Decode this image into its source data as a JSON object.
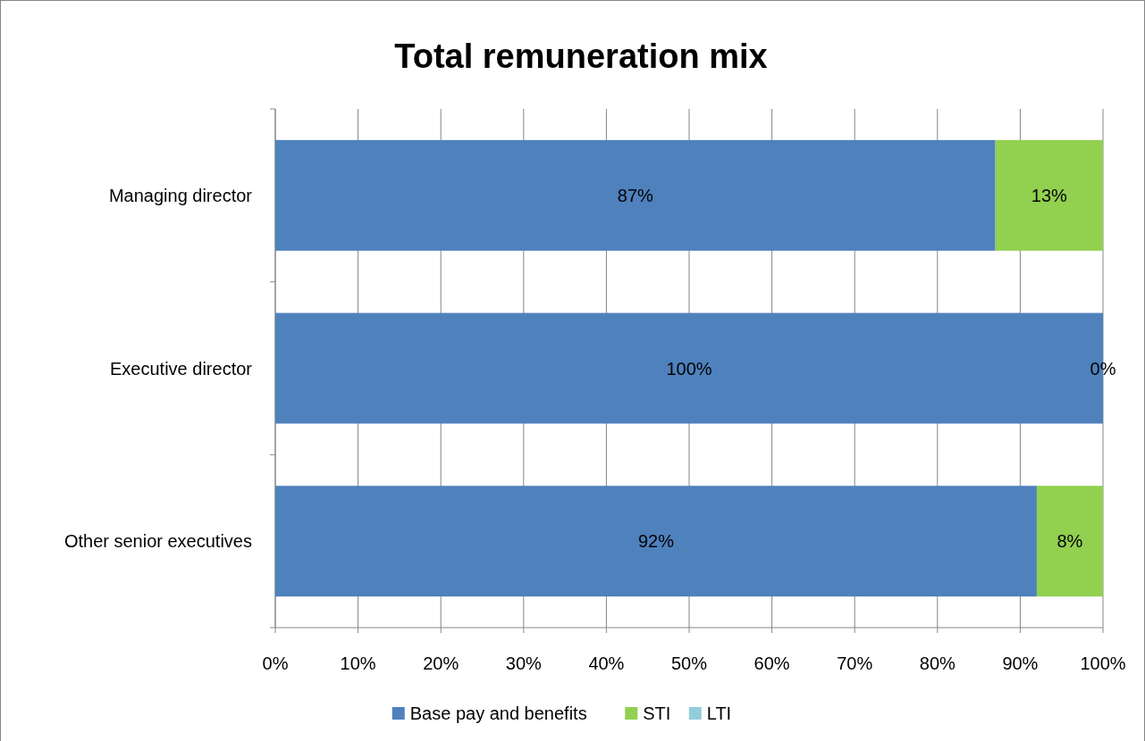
{
  "chart_data": {
    "type": "bar",
    "orientation": "horizontal",
    "stacked": true,
    "title": "Total remuneration mix",
    "categories": [
      "Managing director",
      "Executive director",
      "Other senior executives"
    ],
    "series": [
      {
        "name": "Base pay and benefits",
        "color": "#4f81bd",
        "values": [
          87,
          100,
          92
        ],
        "value_labels": [
          "87%",
          "100%",
          "92%"
        ]
      },
      {
        "name": "STI",
        "color": "#92d050",
        "values": [
          13,
          0,
          8
        ],
        "value_labels": [
          "13%",
          "0%",
          "8%"
        ]
      },
      {
        "name": "LTI",
        "color": "#92cddc",
        "values": [
          0,
          0,
          0
        ],
        "value_labels": [
          null,
          null,
          null
        ]
      }
    ],
    "xlim": [
      0,
      100
    ],
    "xticks": [
      {
        "value": 0,
        "label": "0%"
      },
      {
        "value": 10,
        "label": "10%"
      },
      {
        "value": 20,
        "label": "20%"
      },
      {
        "value": 30,
        "label": "30%"
      },
      {
        "value": 40,
        "label": "40%"
      },
      {
        "value": 50,
        "label": "50%"
      },
      {
        "value": 60,
        "label": "60%"
      },
      {
        "value": 70,
        "label": "70%"
      },
      {
        "value": 80,
        "label": "80%"
      },
      {
        "value": 90,
        "label": "90%"
      },
      {
        "value": 100,
        "label": "100%"
      }
    ],
    "grid": "x",
    "legend": "bottom"
  }
}
